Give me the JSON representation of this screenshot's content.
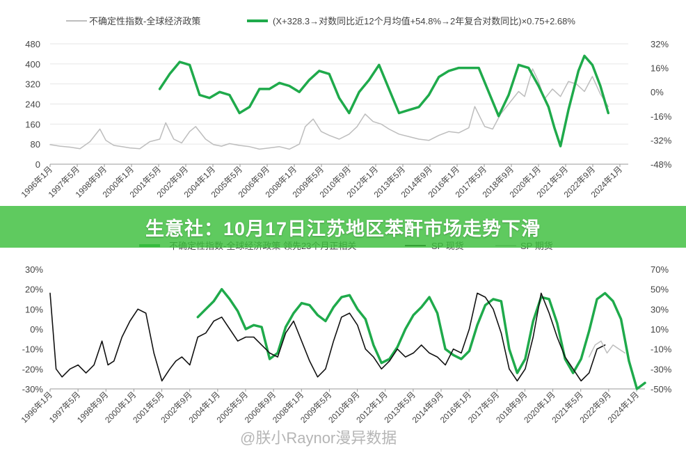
{
  "banner": {
    "headline": "生意社：10月17日江苏地区苯酐市场走势下滑"
  },
  "watermark": {
    "text": "@朕小Raynor漫异数据"
  },
  "colors": {
    "green": "#1faa4b",
    "black": "#111111",
    "gray": "#bdbdbd",
    "axis": "#999999",
    "text": "#444444"
  },
  "chart_data": [
    {
      "type": "line",
      "legend": [
        {
          "name": "不确定性指数-全球经济政策",
          "color": "#bdbdbd"
        },
        {
          "name": "(X+328.3→对数同比近12个月均值+54.8%→2年复合对数同比)×0.75+2.68%",
          "color": "#1faa4b"
        }
      ],
      "x_ticks": [
        "1996年1月",
        "1997年5月",
        "1998年9月",
        "2000年1月",
        "2001年5月",
        "2002年9月",
        "2004年1月",
        "2005年5月",
        "2006年9月",
        "2008年1月",
        "2009年5月",
        "2010年9月",
        "2012年1月",
        "2013年5月",
        "2014年9月",
        "2016年1月",
        "2017年5月",
        "2018年9月",
        "2020年1月",
        "2021年5月",
        "2022年9月",
        "2024年1月"
      ],
      "y_left": {
        "ticks": [
          "0",
          "80",
          "160",
          "240",
          "320",
          "400",
          "480"
        ],
        "min": 0,
        "max": 480
      },
      "y_right": {
        "ticks": [
          "-48%",
          "-32%",
          "-16%",
          "0%",
          "16%",
          "32%"
        ],
        "min": -48,
        "max": 32
      },
      "series": [
        {
          "name": "不确定性指数-全球经济政策",
          "axis": "left",
          "x": [
            1996.0,
            1996.5,
            1997.0,
            1997.5,
            1998.0,
            1998.5,
            1998.8,
            1999.2,
            1999.6,
            2000.0,
            2000.5,
            2001.0,
            2001.5,
            2001.8,
            2002.2,
            2002.6,
            2003.0,
            2003.3,
            2003.8,
            2004.2,
            2004.6,
            2005.0,
            2005.5,
            2006.0,
            2006.5,
            2007.0,
            2007.5,
            2008.0,
            2008.5,
            2008.8,
            2009.2,
            2009.6,
            2010.0,
            2010.5,
            2011.0,
            2011.4,
            2011.8,
            2012.2,
            2012.6,
            2013.0,
            2013.5,
            2014.0,
            2014.5,
            2015.0,
            2015.5,
            2016.0,
            2016.5,
            2017.0,
            2017.3,
            2017.8,
            2018.2,
            2018.6,
            2019.0,
            2019.5,
            2019.8,
            2020.2,
            2020.5,
            2020.8,
            2021.2,
            2021.6,
            2022.0,
            2022.4,
            2022.8,
            2023.2,
            2023.6,
            2024.0
          ],
          "y": [
            78,
            72,
            68,
            62,
            90,
            140,
            95,
            75,
            70,
            65,
            62,
            90,
            100,
            165,
            100,
            85,
            130,
            150,
            100,
            78,
            72,
            82,
            75,
            70,
            60,
            65,
            70,
            60,
            80,
            150,
            180,
            130,
            115,
            100,
            120,
            150,
            200,
            170,
            160,
            140,
            120,
            110,
            100,
            95,
            115,
            130,
            125,
            145,
            230,
            150,
            140,
            200,
            240,
            290,
            270,
            380,
            330,
            260,
            300,
            270,
            330,
            320,
            290,
            350,
            280,
            230
          ]
        },
        {
          "name": "(X+328.3→对数同比近12个月均值+54.8%→2年复合对数同比)×0.75+2.68%",
          "axis": "right",
          "x": [
            2001.5,
            2002.0,
            2002.5,
            2003.0,
            2003.5,
            2004.0,
            2004.5,
            2005.0,
            2005.5,
            2006.0,
            2006.5,
            2007.0,
            2007.5,
            2008.0,
            2008.5,
            2009.0,
            2009.5,
            2010.0,
            2010.5,
            2011.0,
            2011.5,
            2012.0,
            2012.5,
            2013.0,
            2013.5,
            2014.0,
            2014.5,
            2015.0,
            2015.5,
            2016.0,
            2016.5,
            2017.0,
            2017.5,
            2018.0,
            2018.5,
            2019.0,
            2019.5,
            2020.0,
            2020.5,
            2021.0,
            2021.3,
            2021.6,
            2022.0,
            2022.5,
            2022.8,
            2023.2,
            2023.6,
            2024.0
          ],
          "y": [
            2,
            12,
            20,
            18,
            -2,
            -4,
            0,
            -2,
            -14,
            -10,
            2,
            2,
            6,
            4,
            0,
            8,
            14,
            12,
            -4,
            -14,
            0,
            8,
            18,
            2,
            -14,
            -12,
            -10,
            -2,
            10,
            14,
            16,
            16,
            16,
            0,
            -16,
            -2,
            18,
            16,
            4,
            -10,
            -24,
            -36,
            -12,
            14,
            24,
            18,
            4,
            -14
          ]
        }
      ]
    },
    {
      "type": "line",
      "legend": [
        {
          "name": "不确定性指数-全球经济政策 领先23个月正相关",
          "color": "#1faa4b"
        },
        {
          "name": "SP 现货",
          "color": "#111111"
        },
        {
          "name": "SP 期货",
          "color": "#bdbdbd"
        }
      ],
      "x_ticks": [
        "1996年1月",
        "1997年5月",
        "1998年9月",
        "2000年1月",
        "2001年5月",
        "2002年9月",
        "2004年1月",
        "2005年5月",
        "2006年9月",
        "2008年1月",
        "2009年5月",
        "2010年9月",
        "2012年1月",
        "2013年5月",
        "2014年9月",
        "2016年1月",
        "2017年5月",
        "2018年9月",
        "2020年1月",
        "2021年5月",
        "2022年9月",
        "2024年1月"
      ],
      "y_left": {
        "ticks": [
          "-30%",
          "-20%",
          "-10%",
          "0%",
          "10%",
          "20%",
          "30%"
        ],
        "min": -30,
        "max": 30
      },
      "y_right": {
        "ticks": [
          "-50%",
          "-30%",
          "-10%",
          "10%",
          "30%",
          "50%",
          "70%"
        ],
        "min": -50,
        "max": 70
      },
      "series": [
        {
          "name": "不确定性指数-全球经济政策 领先23个月正相关",
          "axis": "right",
          "x": [
            2003.4,
            2003.8,
            2004.2,
            2004.6,
            2005.0,
            2005.4,
            2005.8,
            2006.2,
            2006.6,
            2007.0,
            2007.4,
            2007.8,
            2008.2,
            2008.6,
            2009.0,
            2009.4,
            2009.8,
            2010.2,
            2010.6,
            2011.0,
            2011.4,
            2011.8,
            2012.2,
            2012.6,
            2013.0,
            2013.4,
            2013.8,
            2014.2,
            2014.6,
            2015.0,
            2015.4,
            2015.8,
            2016.2,
            2016.6,
            2017.0,
            2017.4,
            2017.8,
            2018.2,
            2018.6,
            2019.0,
            2019.4,
            2019.8,
            2020.2,
            2020.6,
            2021.0,
            2021.4,
            2021.8,
            2022.2,
            2022.6,
            2023.0,
            2023.4,
            2023.8,
            2024.2,
            2024.6,
            2025.0,
            2025.4,
            2025.8
          ],
          "y": [
            22,
            30,
            38,
            50,
            40,
            28,
            10,
            14,
            12,
            -20,
            -14,
            12,
            26,
            36,
            34,
            24,
            18,
            32,
            42,
            44,
            30,
            20,
            -6,
            -24,
            -20,
            -8,
            10,
            24,
            32,
            42,
            26,
            -10,
            -16,
            -20,
            -12,
            14,
            34,
            40,
            38,
            -10,
            -34,
            -20,
            18,
            42,
            40,
            16,
            -20,
            -34,
            -20,
            8,
            40,
            46,
            38,
            20,
            -22,
            -50,
            -44
          ]
        },
        {
          "name": "SP 现货",
          "axis": "left",
          "x": [
            1996.0,
            1996.3,
            1996.6,
            1997.0,
            1997.4,
            1997.8,
            1998.2,
            1998.6,
            1998.9,
            1999.2,
            1999.6,
            2000.0,
            2000.4,
            2000.8,
            2001.2,
            2001.6,
            2002.0,
            2002.3,
            2002.6,
            2003.0,
            2003.4,
            2003.8,
            2004.2,
            2004.6,
            2005.0,
            2005.4,
            2005.8,
            2006.2,
            2006.6,
            2007.0,
            2007.4,
            2007.8,
            2008.2,
            2008.6,
            2009.0,
            2009.4,
            2009.8,
            2010.2,
            2010.6,
            2011.0,
            2011.4,
            2011.8,
            2012.2,
            2012.6,
            2013.0,
            2013.4,
            2013.8,
            2014.2,
            2014.6,
            2015.0,
            2015.4,
            2015.8,
            2016.2,
            2016.6,
            2017.0,
            2017.4,
            2017.8,
            2018.2,
            2018.6,
            2019.0,
            2019.4,
            2019.8,
            2020.2,
            2020.6,
            2021.0,
            2021.4,
            2021.8,
            2022.2,
            2022.6,
            2023.0,
            2023.4,
            2023.8
          ],
          "y": [
            18,
            -20,
            -24,
            -20,
            -18,
            -22,
            -18,
            -6,
            -18,
            -16,
            -4,
            4,
            10,
            8,
            -12,
            -26,
            -20,
            -16,
            -14,
            -18,
            -4,
            -2,
            4,
            6,
            0,
            -6,
            -4,
            -4,
            -8,
            -12,
            -14,
            -2,
            4,
            -6,
            -16,
            -24,
            -20,
            -6,
            6,
            8,
            2,
            -10,
            -14,
            -20,
            -16,
            -10,
            -14,
            -12,
            -8,
            -12,
            -14,
            -18,
            -10,
            -12,
            0,
            18,
            16,
            10,
            -2,
            -20,
            -26,
            -20,
            -4,
            18,
            8,
            -4,
            -14,
            -20,
            -26,
            -22,
            -10,
            -8
          ]
        },
        {
          "name": "SP 期货",
          "axis": "left",
          "x": [
            2023.0,
            2023.3,
            2023.6,
            2023.9,
            2024.2,
            2024.5,
            2024.8
          ],
          "y": [
            -14,
            -8,
            -6,
            -12,
            -8,
            -10,
            -12
          ]
        }
      ]
    }
  ]
}
